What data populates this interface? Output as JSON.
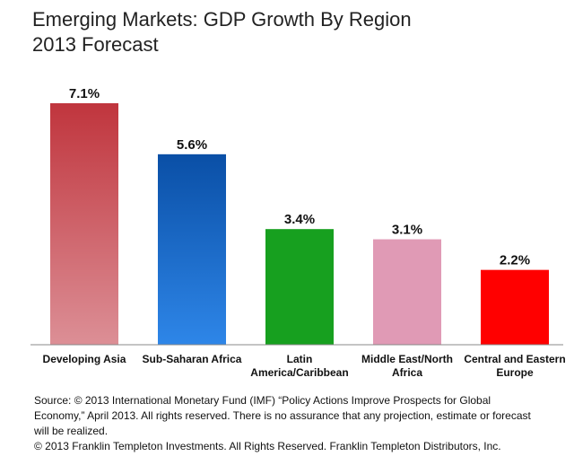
{
  "chart_data": {
    "type": "bar",
    "title": "Emerging Markets: GDP Growth By Region",
    "subtitle": "2013 Forecast",
    "categories": [
      "Developing Asia",
      "Sub-Saharan Africa",
      "Latin America/Caribbean",
      "Middle East/North Africa",
      "Central and Eastern Europe"
    ],
    "category_lines": [
      [
        "Developing Asia"
      ],
      [
        "Sub-Saharan Africa"
      ],
      [
        "Latin",
        "America/Caribbean"
      ],
      [
        "Middle East/North",
        "Africa"
      ],
      [
        "Central and Eastern",
        "Europe"
      ]
    ],
    "values": [
      7.1,
      5.6,
      3.4,
      3.1,
      2.2
    ],
    "value_labels": [
      "7.1%",
      "5.6%",
      "3.4%",
      "3.1%",
      "2.2%"
    ],
    "colors": [
      {
        "top": "#c0353d",
        "bottom": "#dc8f96"
      },
      {
        "top": "#0a4fa6",
        "bottom": "#2e86e8"
      },
      {
        "top": "#17a01f",
        "bottom": "#17a01f"
      },
      {
        "top": "#e09ab5",
        "bottom": "#e09ab5"
      },
      {
        "top": "#ff0000",
        "bottom": "#ff0000"
      }
    ],
    "ylim": [
      0,
      7.1
    ],
    "grid": false,
    "xlabel": "",
    "ylabel": ""
  },
  "footer": {
    "source": "Source:  © 2013 International Monetary Fund (IMF)  “Policy Actions Improve Prospects for Global Economy,” April 2013. All rights reserved. There is no assurance that any projection, estimate or forecast will be realized.",
    "copyright": "© 2013 Franklin Templeton Investments.  All Rights Reserved. Franklin Templeton Distributors, Inc."
  }
}
